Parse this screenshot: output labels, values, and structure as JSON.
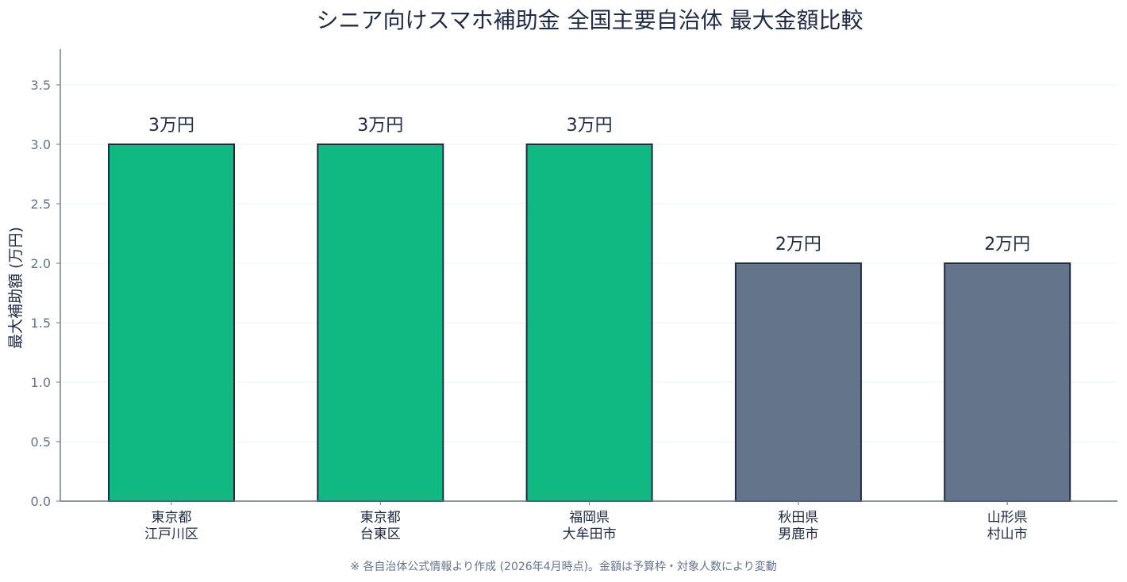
{
  "chart_data": {
    "type": "bar",
    "title": "シニア向けスマホ補助金 全国主要自治体 最大金額比較",
    "ylabel": "最大補助額 (万円)",
    "xlabel": "",
    "ylim": [
      0,
      3.8
    ],
    "yticks": [
      "0.0",
      "0.5",
      "1.0",
      "1.5",
      "2.0",
      "2.5",
      "3.0",
      "3.5"
    ],
    "grid": true,
    "categories": [
      {
        "line1": "東京都",
        "line2": "江戸川区"
      },
      {
        "line1": "東京都",
        "line2": "台東区"
      },
      {
        "line1": "福岡県",
        "line2": "大牟田市"
      },
      {
        "line1": "秋田県",
        "line2": "男鹿市"
      },
      {
        "line1": "山形県",
        "line2": "村山市"
      }
    ],
    "values": [
      3,
      3,
      3,
      2,
      2
    ],
    "data_labels": [
      "3万円",
      "3万円",
      "3万円",
      "2万円",
      "2万円"
    ],
    "bar_colors": [
      "#10b981",
      "#10b981",
      "#10b981",
      "#64748b",
      "#64748b"
    ],
    "bar_edge_color": "#1f2a44",
    "axis_color": "#64748b",
    "grid_color": "#f1f5f9",
    "text_color": "#1f2a44"
  },
  "footnote": "※ 各自治体公式情報より作成 (2026年4月時点)。金額は予算枠・対象人数により変動"
}
